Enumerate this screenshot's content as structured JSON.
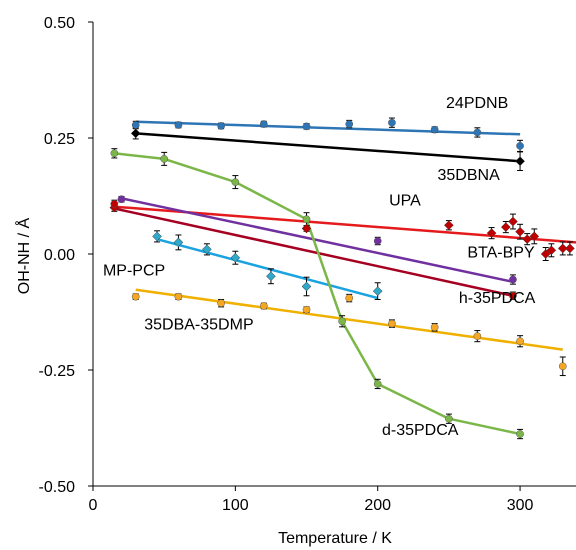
{
  "chart_data": {
    "type": "scatter",
    "title": "",
    "xlabel": "Temperature / K",
    "ylabel": "OH-NH / Å",
    "xlim": [
      0,
      340
    ],
    "ylim": [
      -0.5,
      0.5
    ],
    "x_ticks": [
      0,
      100,
      200,
      300
    ],
    "y_ticks": [
      0.5,
      0.25,
      0.0,
      -0.25,
      -0.5
    ],
    "x_tick_labels": [
      "0",
      "100",
      "200",
      "300"
    ],
    "y_tick_labels": [
      "0.50",
      "0.25",
      "0.00",
      "-0.25",
      "-0.50"
    ],
    "grid": false,
    "legend": "none",
    "series": [
      {
        "name": "24PDNB",
        "color": "#2E75B6",
        "marker": "circle",
        "points": [
          [
            30,
            0.278
          ],
          [
            60,
            0.278
          ],
          [
            90,
            0.276
          ],
          [
            120,
            0.28
          ],
          [
            150,
            0.275
          ],
          [
            180,
            0.28
          ],
          [
            210,
            0.283
          ],
          [
            240,
            0.268
          ],
          [
            270,
            0.262
          ],
          [
            300,
            0.233
          ]
        ],
        "errors": [
          0.008,
          0.006,
          0.006,
          0.006,
          0.006,
          0.008,
          0.01,
          0.006,
          0.01,
          0.012
        ],
        "fit": [
          [
            30,
            0.285
          ],
          [
            300,
            0.258
          ]
        ]
      },
      {
        "name": "35DBNA",
        "color": "#000000",
        "marker": "diamond",
        "points": [
          [
            30,
            0.26
          ],
          [
            300,
            0.2
          ]
        ],
        "errors": [
          0.012,
          0.02
        ],
        "fit": [
          [
            30,
            0.26
          ],
          [
            300,
            0.2
          ]
        ]
      },
      {
        "name": "UPA",
        "color": "#C00000",
        "fit_color": "#E41A1C",
        "marker": "diamond",
        "points": [
          [
            15,
            0.1
          ],
          [
            150,
            0.055
          ],
          [
            250,
            0.062
          ],
          [
            280,
            0.045
          ],
          [
            290,
            0.058
          ],
          [
            295,
            0.07
          ],
          [
            300,
            0.048
          ],
          [
            305,
            0.032
          ],
          [
            310,
            0.038
          ],
          [
            318,
            0.0
          ],
          [
            322,
            0.008
          ],
          [
            330,
            0.012
          ],
          [
            335,
            0.012
          ]
        ],
        "errors": [
          0.008,
          0.006,
          0.01,
          0.012,
          0.012,
          0.016,
          0.016,
          0.012,
          0.016,
          0.014,
          0.014,
          0.014,
          0.014
        ],
        "fit": [
          [
            15,
            0.102
          ],
          [
            340,
            0.025
          ]
        ]
      },
      {
        "name": "BTA-BPY",
        "color": "#7030A0",
        "marker": "circle",
        "points": [
          [
            20,
            0.118
          ],
          [
            200,
            0.028
          ],
          [
            295,
            -0.055
          ]
        ],
        "errors": [
          0.006,
          0.008,
          0.01
        ],
        "fit": [
          [
            20,
            0.12
          ],
          [
            295,
            -0.06
          ]
        ]
      },
      {
        "name": "h-35PDCA",
        "color": "#C00000",
        "fit_color": "#A50021",
        "marker": "circle",
        "points": [
          [
            15,
            0.108
          ],
          [
            295,
            -0.09
          ]
        ],
        "errors": [
          0.008,
          0.008
        ],
        "fit": [
          [
            15,
            0.098
          ],
          [
            295,
            -0.09
          ]
        ]
      },
      {
        "name": "MP-PCP",
        "color": "#31A8C8",
        "fit_color": "#1AA3E0",
        "marker": "diamond",
        "points": [
          [
            45,
            0.038
          ],
          [
            60,
            0.025
          ],
          [
            80,
            0.01
          ],
          [
            100,
            -0.008
          ],
          [
            125,
            -0.048
          ],
          [
            150,
            -0.07
          ],
          [
            200,
            -0.08
          ]
        ],
        "errors": [
          0.012,
          0.016,
          0.012,
          0.014,
          0.016,
          0.02,
          0.018
        ],
        "fit": [
          [
            45,
            0.032
          ],
          [
            200,
            -0.095
          ]
        ]
      },
      {
        "name": "35DBA-35DMP",
        "color": "#F5A623",
        "fit_color": "#F0B000",
        "marker": "circle",
        "points": [
          [
            30,
            -0.092
          ],
          [
            60,
            -0.092
          ],
          [
            90,
            -0.106
          ],
          [
            120,
            -0.112
          ],
          [
            150,
            -0.12
          ],
          [
            180,
            -0.095
          ],
          [
            210,
            -0.15
          ],
          [
            240,
            -0.158
          ],
          [
            270,
            -0.177
          ],
          [
            300,
            -0.188
          ],
          [
            330,
            -0.242
          ]
        ],
        "errors": [
          0.006,
          0.006,
          0.008,
          0.006,
          0.006,
          0.008,
          0.008,
          0.008,
          0.012,
          0.012,
          0.02
        ],
        "fit": [
          [
            30,
            -0.077
          ],
          [
            330,
            -0.206
          ]
        ]
      },
      {
        "name": "d-35PDCA",
        "color": "#7AB648",
        "marker": "circle",
        "points": [
          [
            15,
            0.217
          ],
          [
            50,
            0.205
          ],
          [
            100,
            0.155
          ],
          [
            150,
            0.075
          ],
          [
            175,
            -0.145
          ],
          [
            200,
            -0.28
          ],
          [
            250,
            -0.355
          ],
          [
            300,
            -0.388
          ]
        ],
        "errors": [
          0.01,
          0.014,
          0.014,
          0.014,
          0.012,
          0.01,
          0.01,
          0.01
        ],
        "fit": [
          [
            15,
            0.217
          ],
          [
            50,
            0.205
          ],
          [
            100,
            0.155
          ],
          [
            150,
            0.075
          ],
          [
            175,
            -0.145
          ],
          [
            200,
            -0.28
          ],
          [
            250,
            -0.355
          ],
          [
            300,
            -0.388
          ]
        ],
        "fit_style": "connect"
      }
    ],
    "annotations": [
      {
        "text": "24PDNB",
        "x": 248,
        "y": 0.315
      },
      {
        "text": "35DBNA",
        "x": 242,
        "y": 0.16
      },
      {
        "text": "UPA",
        "x": 208,
        "y": 0.105
      },
      {
        "text": "BTA-BPY",
        "x": 263,
        "y": -0.008
      },
      {
        "text": "h-35PDCA",
        "x": 257,
        "y": -0.106
      },
      {
        "text": "MP-PCP",
        "x": 7,
        "y": -0.046
      },
      {
        "text": "35DBA-35DMP",
        "x": 36,
        "y": -0.163
      },
      {
        "text": "d-35PDCA",
        "x": 203,
        "y": -0.39
      }
    ]
  }
}
